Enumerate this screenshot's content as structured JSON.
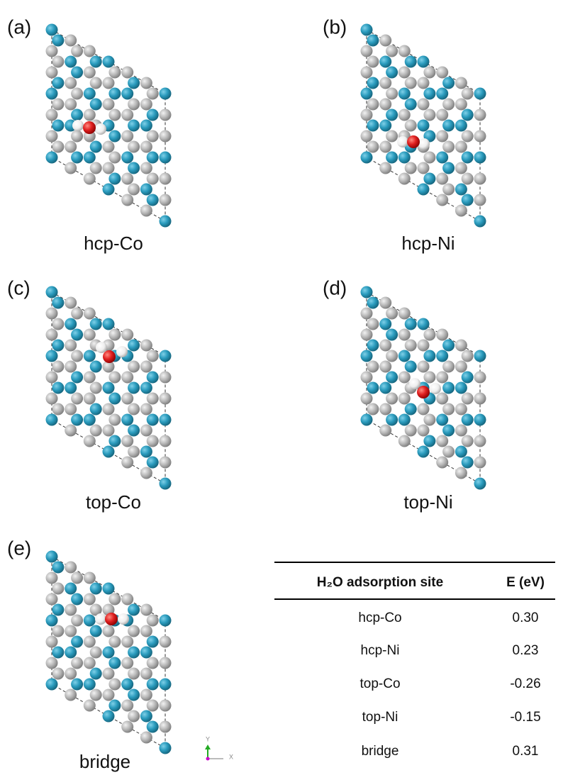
{
  "panels": [
    {
      "label": "(a)",
      "caption": "hcp-Co"
    },
    {
      "label": "(b)",
      "caption": "hcp-Ni"
    },
    {
      "label": "(c)",
      "caption": "top-Co"
    },
    {
      "label": "(d)",
      "caption": "top-Ni"
    },
    {
      "label": "(e)",
      "caption": "bridge"
    }
  ],
  "axes": {
    "y": "Y",
    "x": "X"
  },
  "table": {
    "header": [
      "H₂O adsorption site",
      "E (eV)"
    ],
    "rows": [
      [
        "hcp-Co",
        "0.30"
      ],
      [
        "hcp-Ni",
        "0.23"
      ],
      [
        "top-Co",
        "-0.26"
      ],
      [
        "top-Ni",
        "-0.15"
      ],
      [
        "bridge",
        "0.31"
      ]
    ]
  }
}
